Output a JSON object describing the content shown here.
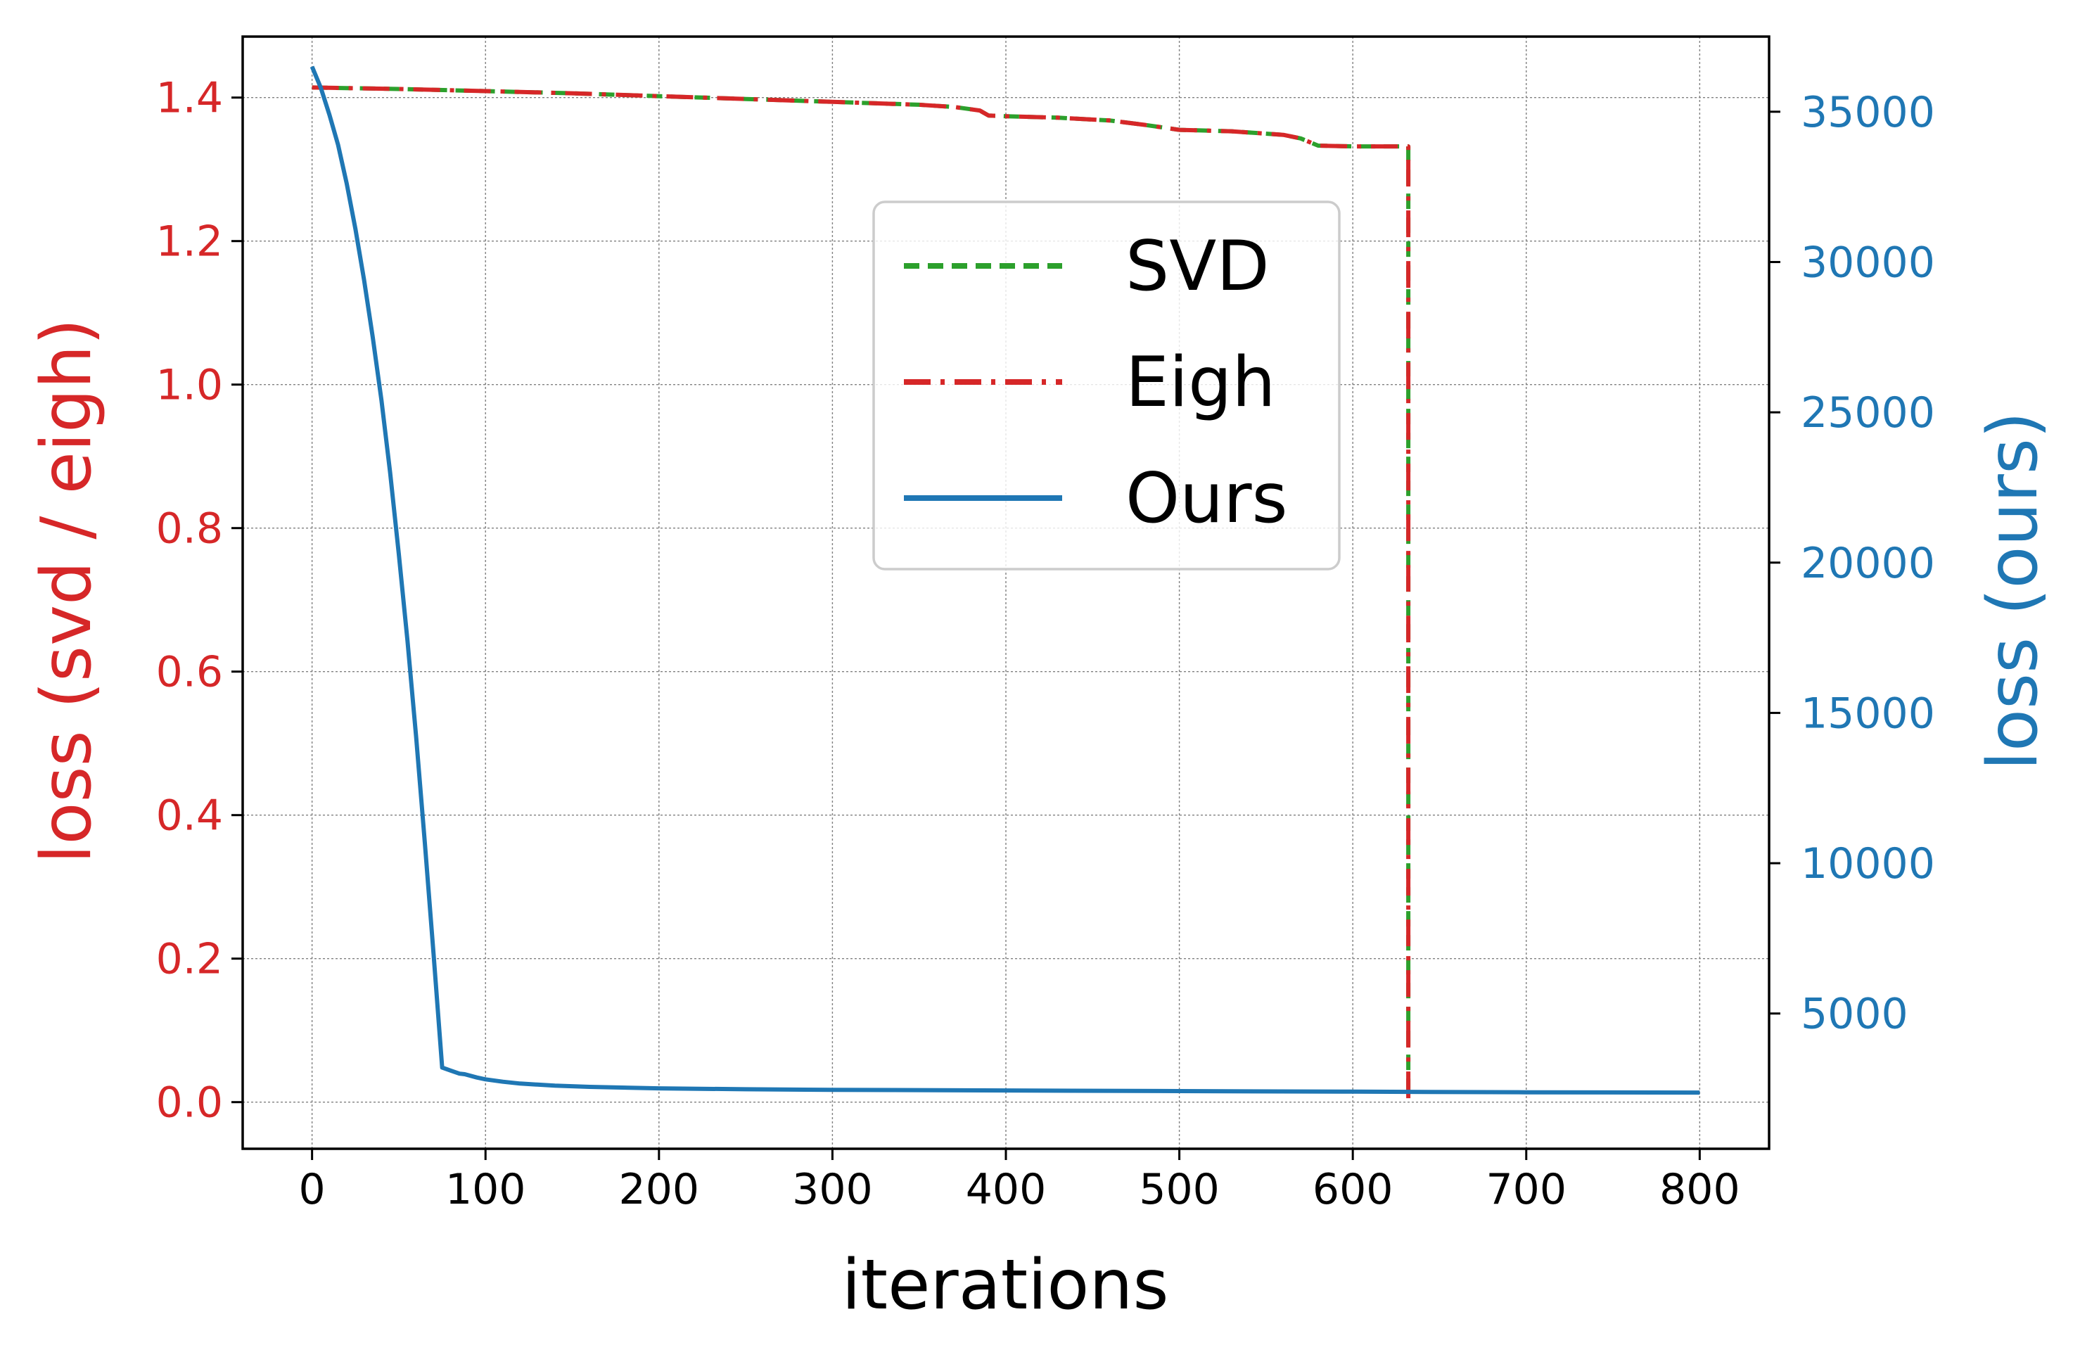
{
  "chart_data": {
    "type": "line",
    "xlabel": "iterations",
    "ylabel_left": "loss (svd / eigh)",
    "ylabel_right": "loss (ours)",
    "xlim": [
      -40,
      840
    ],
    "ylim_left": [
      -0.065,
      1.485
    ],
    "ylim_right": [
      500,
      37500
    ],
    "x_ticks": [
      0,
      100,
      200,
      300,
      400,
      500,
      600,
      700,
      800
    ],
    "y_ticks_left": [
      "0.0",
      "0.2",
      "0.4",
      "0.6",
      "0.8",
      "1.0",
      "1.2",
      "1.4"
    ],
    "y_ticks_right": [
      "5000",
      "10000",
      "15000",
      "20000",
      "25000",
      "30000",
      "35000"
    ],
    "grid": true,
    "legend_position": "upper center",
    "colors": {
      "svd": "#2ca02c",
      "eigh": "#d62728",
      "ours": "#1f77b4",
      "left_axis": "#d62728",
      "right_axis": "#1f77b4"
    },
    "series": [
      {
        "name": "SVD",
        "axis": "left",
        "style": "dashed",
        "x": [
          0,
          50,
          100,
          150,
          200,
          250,
          300,
          350,
          370,
          385,
          390,
          400,
          430,
          460,
          480,
          500,
          530,
          560,
          570,
          580,
          600,
          632,
          632
        ],
        "y": [
          1.414,
          1.412,
          1.409,
          1.406,
          1.402,
          1.398,
          1.394,
          1.39,
          1.387,
          1.382,
          1.375,
          1.374,
          1.372,
          1.368,
          1.362,
          1.355,
          1.353,
          1.348,
          1.343,
          1.333,
          1.332,
          1.332,
          0.002
        ]
      },
      {
        "name": "Eigh",
        "axis": "left",
        "style": "dashdot",
        "x": [
          0,
          50,
          100,
          150,
          200,
          250,
          300,
          350,
          370,
          385,
          390,
          400,
          430,
          460,
          480,
          500,
          530,
          560,
          570,
          580,
          600,
          632,
          632
        ],
        "y": [
          1.414,
          1.412,
          1.409,
          1.406,
          1.402,
          1.398,
          1.394,
          1.39,
          1.387,
          1.382,
          1.375,
          1.374,
          1.372,
          1.368,
          1.362,
          1.355,
          1.353,
          1.348,
          1.343,
          1.333,
          1.332,
          1.332,
          0.002
        ]
      },
      {
        "name": "Ours",
        "axis": "right",
        "style": "solid",
        "x": [
          0,
          5,
          10,
          15,
          20,
          25,
          30,
          35,
          40,
          45,
          50,
          55,
          60,
          65,
          70,
          75,
          80,
          85,
          88,
          95,
          100,
          110,
          120,
          140,
          160,
          200,
          250,
          300,
          400,
          500,
          600,
          700,
          800
        ],
        "y": [
          36500,
          35800,
          34900,
          33900,
          32600,
          31100,
          29400,
          27500,
          25400,
          23000,
          20300,
          17400,
          14200,
          10700,
          7000,
          3200,
          3100,
          3000,
          2980,
          2870,
          2810,
          2730,
          2670,
          2600,
          2560,
          2510,
          2480,
          2460,
          2440,
          2420,
          2400,
          2380,
          2370
        ]
      }
    ]
  }
}
